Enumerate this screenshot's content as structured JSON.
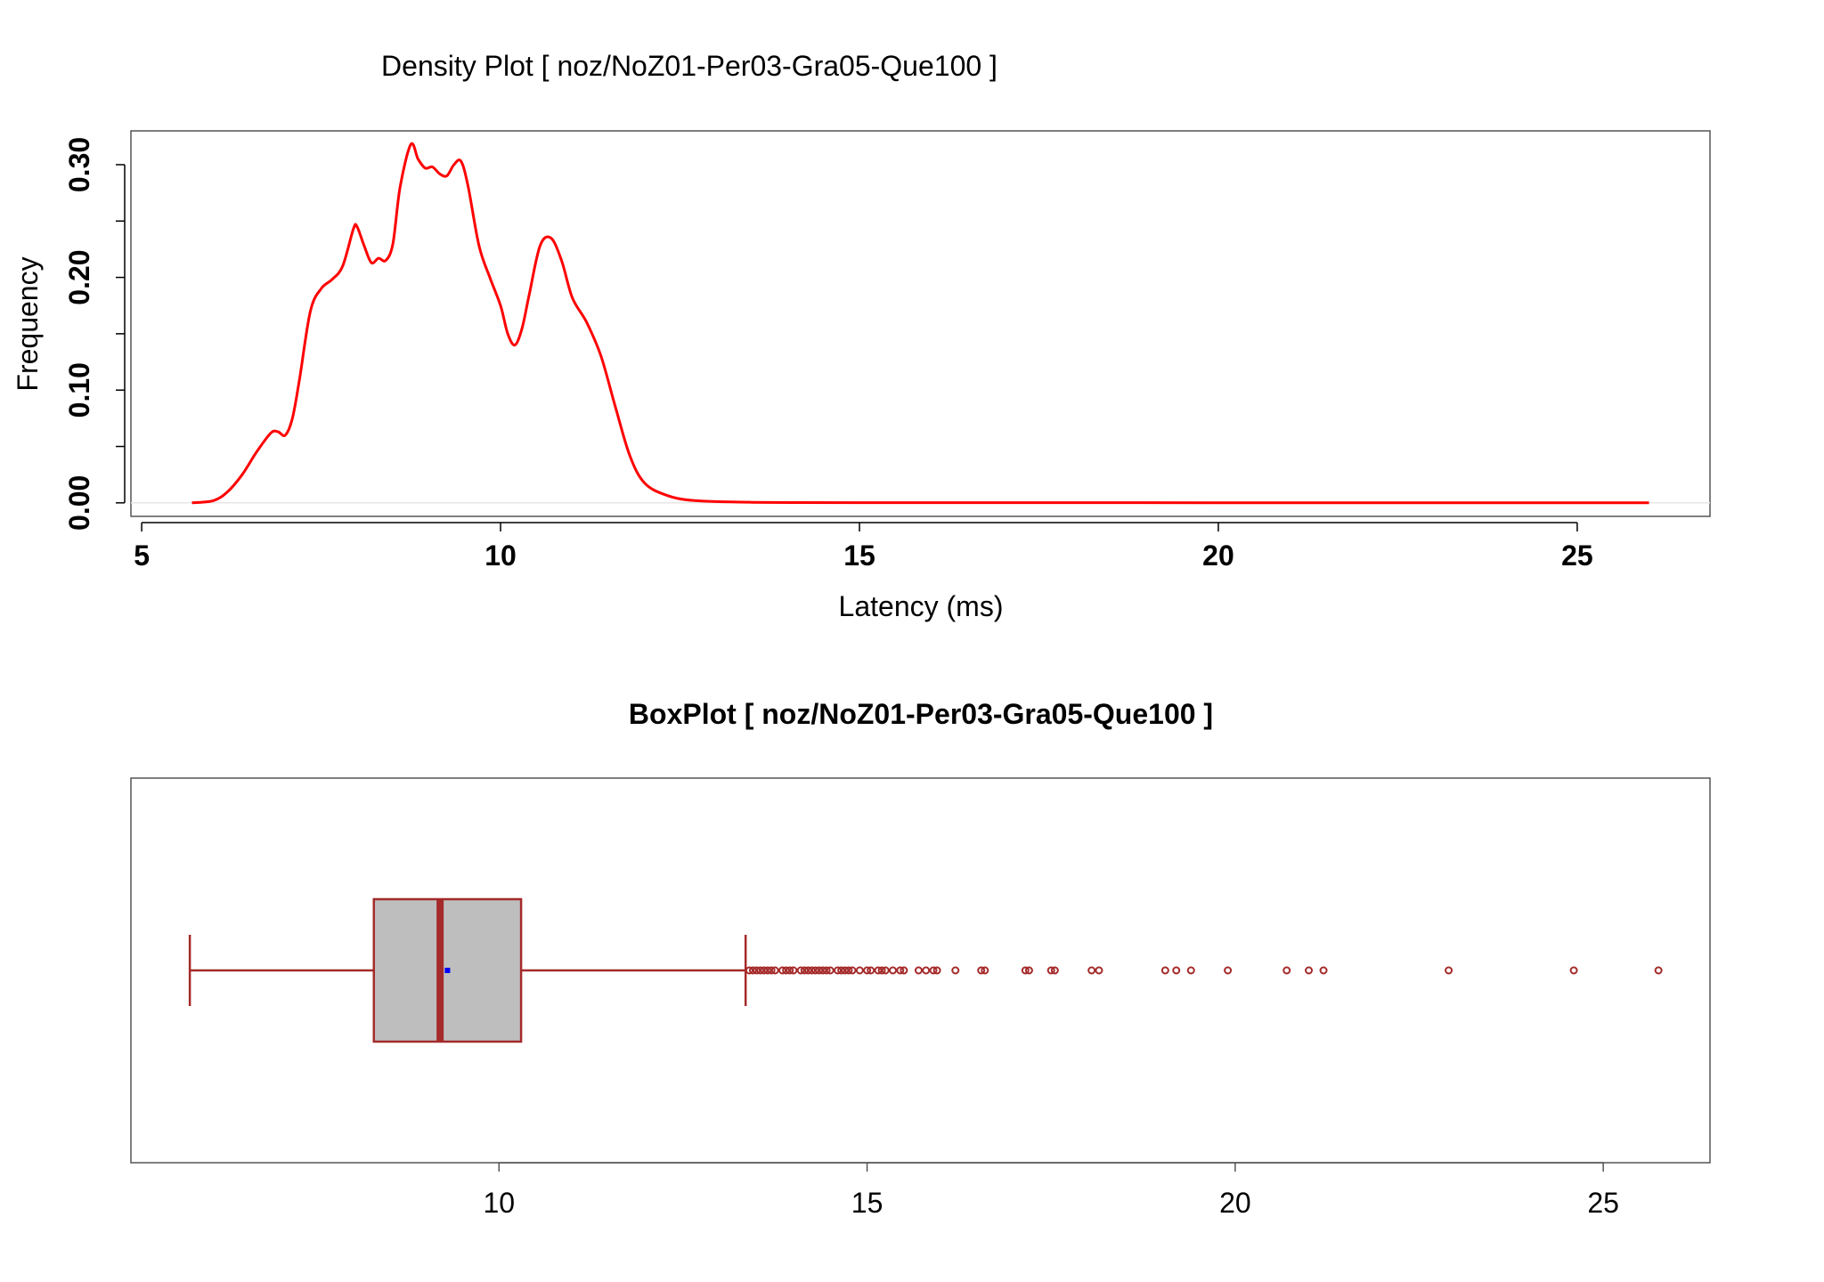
{
  "chart_data": [
    {
      "type": "line",
      "title": "Density Plot [ noz/NoZ01-Per03-Gra05-Que100 ]",
      "xlabel": "Latency (ms)",
      "ylabel": "Frequency",
      "xlim": [
        4.85,
        26.85
      ],
      "ylim": [
        -0.012,
        0.33
      ],
      "xticks": [
        "5",
        "10",
        "15",
        "20",
        "25"
      ],
      "yticks": [
        "0.00",
        "0.10",
        "0.20",
        "0.30"
      ],
      "ytick_minor": [
        0.05,
        0.15,
        0.25
      ],
      "line_color": "#ff0000",
      "series": [
        {
          "x": [
            5.7,
            6.0,
            6.2,
            6.4,
            6.6,
            6.8,
            6.9,
            7.0,
            7.1,
            7.2,
            7.35,
            7.5,
            7.65,
            7.8,
            7.95,
            8.0,
            8.1,
            8.2,
            8.3,
            8.4,
            8.5,
            8.6,
            8.75,
            8.85,
            8.95,
            9.05,
            9.15,
            9.25,
            9.35,
            9.45,
            9.55,
            9.7,
            9.85,
            10.0,
            10.1,
            10.2,
            10.3,
            10.4,
            10.55,
            10.7,
            10.85,
            11.0,
            11.2,
            11.4,
            11.6,
            11.8,
            12.0,
            12.3,
            12.7,
            13.5,
            15,
            20,
            26.0
          ],
          "y": [
            0.0,
            0.002,
            0.01,
            0.025,
            0.045,
            0.062,
            0.063,
            0.06,
            0.075,
            0.11,
            0.17,
            0.19,
            0.198,
            0.21,
            0.243,
            0.245,
            0.228,
            0.213,
            0.217,
            0.215,
            0.23,
            0.28,
            0.318,
            0.305,
            0.297,
            0.298,
            0.292,
            0.29,
            0.3,
            0.303,
            0.28,
            0.228,
            0.2,
            0.175,
            0.15,
            0.14,
            0.155,
            0.185,
            0.228,
            0.235,
            0.215,
            0.182,
            0.16,
            0.13,
            0.085,
            0.042,
            0.018,
            0.007,
            0.002,
            0.0005,
            0.0002,
            0.0001,
            0.0
          ]
        }
      ]
    },
    {
      "type": "box",
      "title": "BoxPlot [ noz/NoZ01-Per03-Gra05-Que100 ]",
      "xlabel": "",
      "ylabel": "",
      "xlim": [
        5.0,
        26.45
      ],
      "xticks": [
        "10",
        "15",
        "20",
        "25"
      ],
      "box_fill": "#bebebe",
      "stroke_color": "#a52a2a",
      "mean_color": "#0000ff",
      "stats": {
        "whisker_low": 5.8,
        "q1": 8.3,
        "median": 9.2,
        "q3": 10.3,
        "whisker_high": 13.35,
        "mean": 9.3
      },
      "outliers": [
        13.4,
        13.45,
        13.5,
        13.55,
        13.6,
        13.65,
        13.7,
        13.75,
        13.85,
        13.9,
        13.95,
        14.0,
        14.1,
        14.15,
        14.2,
        14.25,
        14.3,
        14.35,
        14.4,
        14.45,
        14.5,
        14.6,
        14.65,
        14.7,
        14.75,
        14.8,
        14.9,
        15.0,
        15.05,
        15.15,
        15.2,
        15.25,
        15.35,
        15.45,
        15.5,
        15.7,
        15.8,
        15.9,
        15.95,
        16.2,
        16.55,
        16.6,
        17.15,
        17.2,
        17.5,
        17.55,
        18.05,
        18.15,
        19.05,
        19.2,
        19.4,
        19.9,
        20.7,
        21.0,
        21.2,
        22.9,
        24.6,
        25.75
      ]
    }
  ]
}
